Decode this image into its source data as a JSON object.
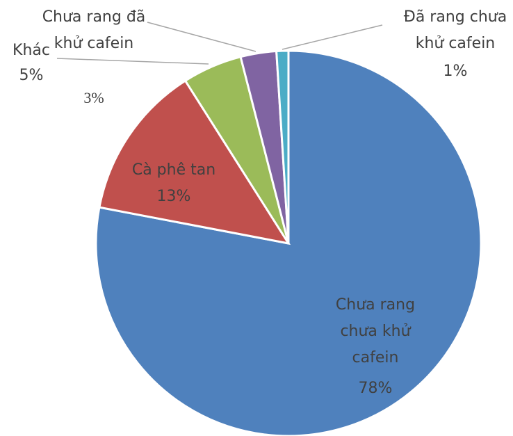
{
  "chart_data": {
    "type": "pie",
    "categories": [
      "Chưa rang chưa khử cafein",
      "Cà phê tan",
      "Khác",
      "Chưa rang đã khử cafein",
      "Đã rang chưa khử cafein"
    ],
    "values": [
      78,
      13,
      5,
      3,
      1
    ],
    "value_labels": [
      "78%",
      "13%",
      "5%",
      "3%",
      "1%"
    ],
    "colors": [
      "#4f81bd",
      "#c0504d",
      "#9bbb59",
      "#8064a2",
      "#4bacc6"
    ]
  }
}
